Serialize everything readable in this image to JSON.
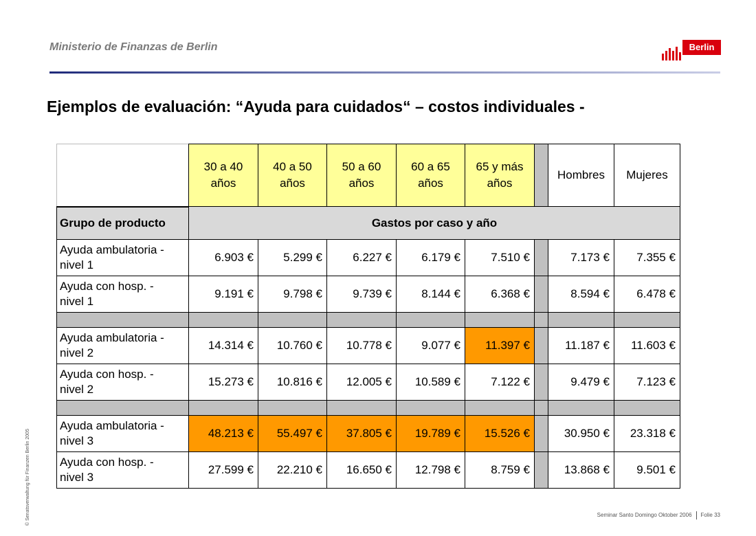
{
  "header": {
    "org": "Ministerio de Finanzas de Berlin",
    "logo_text": "Berlin"
  },
  "title": "Ejemplos de evaluación: “Ayuda para cuidados“ – costos individuales -",
  "side_text": "© Senatsverwaltung für Finanzen Berlin 2005",
  "footer": {
    "event": "Seminar Santo Domingo Oktober 2006",
    "slide": "Folie 33"
  },
  "colors": {
    "age_header": "#ffff99",
    "highlight": "#ff9900",
    "separator": "#c0c0c0",
    "subheader": "#d9d9d9",
    "logo_red": "#d9000d"
  },
  "table": {
    "age_columns": [
      "30 a 40 años",
      "40 a 50 años",
      "50 a 60 años",
      "60 a 65 años",
      "65 y más años"
    ],
    "gender_columns": [
      "Hombres",
      "Mujeres"
    ],
    "row_header": "Grupo de producto",
    "value_header": "Gastos por caso y año",
    "rows": [
      {
        "label": "Ayuda ambulatoria - nivel 1",
        "ages": [
          "6.903 €",
          "5.299 €",
          "6.227 €",
          "6.179 €",
          "7.510 €"
        ],
        "genders": [
          "7.173 €",
          "7.355 €"
        ],
        "highlight": []
      },
      {
        "label": "Ayuda con hosp. - nivel 1",
        "ages": [
          "9.191 €",
          "9.798 €",
          "9.739 €",
          "8.144 €",
          "6.368 €"
        ],
        "genders": [
          "8.594 €",
          "6.478 €"
        ],
        "highlight": []
      },
      {
        "label": "Ayuda ambulatoria - nivel 2",
        "ages": [
          "14.314 €",
          "10.760 €",
          "10.778 €",
          "9.077 €",
          "11.397 €"
        ],
        "genders": [
          "11.187 €",
          "11.603 €"
        ],
        "highlight": [
          4
        ]
      },
      {
        "label": "Ayuda con hosp. - nivel 2",
        "ages": [
          "15.273 €",
          "10.816 €",
          "12.005 €",
          "10.589 €",
          "7.122 €"
        ],
        "genders": [
          "9.479 €",
          "7.123 €"
        ],
        "highlight": []
      },
      {
        "label": "Ayuda ambulatoria - nivel 3",
        "ages": [
          "48.213 €",
          "55.497 €",
          "37.805 €",
          "19.789 €",
          "15.526 €"
        ],
        "genders": [
          "30.950 €",
          "23.318 €"
        ],
        "highlight": [
          0,
          1,
          2,
          3,
          4
        ]
      },
      {
        "label": "Ayuda con hosp. - nivel 3",
        "ages": [
          "27.599 €",
          "22.210 €",
          "16.650 €",
          "12.798 €",
          "8.759 €"
        ],
        "genders": [
          "13.868 €",
          "9.501 €"
        ],
        "highlight": []
      }
    ]
  }
}
